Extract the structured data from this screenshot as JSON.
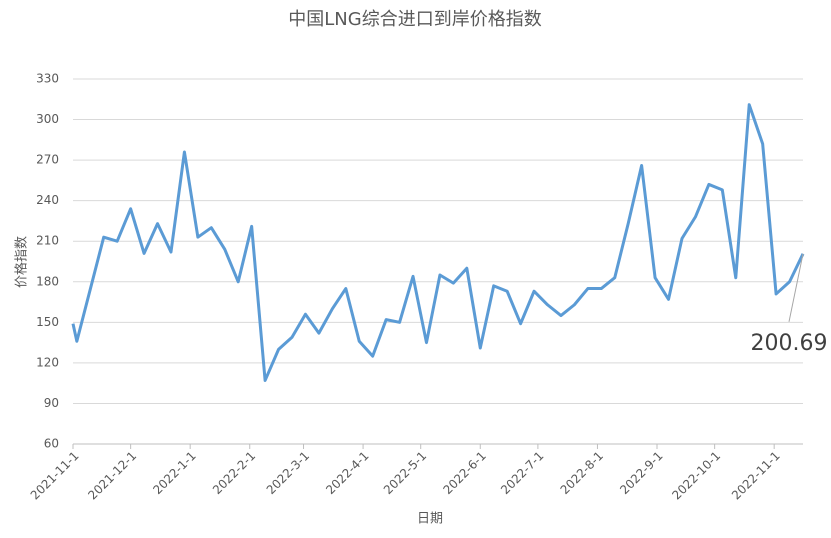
{
  "chart_data": {
    "type": "line",
    "title": "中国LNG综合进口到岸价格指数",
    "x_label": "日期",
    "y_label": "价格指数",
    "x": [
      "2021-11-1",
      "2021-11-3",
      "2021-11-17",
      "2021-11-24",
      "2021-12-1",
      "2021-12-8",
      "2021-12-15",
      "2021-12-22",
      "2021-12-29",
      "2022-1-5",
      "2022-1-12",
      "2022-1-19",
      "2022-1-26",
      "2022-2-2",
      "2022-2-9",
      "2022-2-16",
      "2022-2-23",
      "2022-3-2",
      "2022-3-9",
      "2022-3-16",
      "2022-3-23",
      "2022-3-30",
      "2022-4-6",
      "2022-4-13",
      "2022-4-20",
      "2022-4-27",
      "2022-5-4",
      "2022-5-11",
      "2022-5-18",
      "2022-5-25",
      "2022-6-1",
      "2022-6-8",
      "2022-6-15",
      "2022-6-22",
      "2022-6-29",
      "2022-7-6",
      "2022-7-13",
      "2022-7-20",
      "2022-7-27",
      "2022-8-3",
      "2022-8-10",
      "2022-8-17",
      "2022-8-24",
      "2022-8-31",
      "2022-9-7",
      "2022-9-14",
      "2022-9-21",
      "2022-9-28",
      "2022-10-5",
      "2022-10-12",
      "2022-10-19",
      "2022-10-26",
      "2022-11-2",
      "2022-11-9",
      "2022-11-16"
    ],
    "series": [
      {
        "color": "#5b9bd5",
        "values": [
          149,
          136,
          213,
          210,
          234,
          201,
          223,
          202,
          276,
          213,
          220,
          204,
          180,
          221,
          107,
          130,
          139,
          156,
          142,
          160,
          175,
          136,
          125,
          152,
          150,
          184,
          135,
          185,
          179,
          190,
          131,
          177,
          173,
          149,
          173,
          163,
          155,
          163,
          175,
          175,
          183,
          223,
          266,
          183,
          167,
          212,
          228,
          252,
          248,
          183,
          311,
          282,
          171,
          180,
          200.69
        ]
      }
    ],
    "xlim": [
      "2021-11-1",
      "2022-11-16"
    ],
    "xticks": [
      "2021-11-1",
      "2021-12-1",
      "2022-1-1",
      "2022-2-1",
      "2022-3-1",
      "2022-4-1",
      "2022-5-1",
      "2022-6-1",
      "2022-7-1",
      "2022-8-1",
      "2022-9-1",
      "2022-10-1",
      "2022-11-1"
    ],
    "ylim": [
      60,
      330
    ],
    "yticks": [
      60,
      90,
      120,
      150,
      180,
      210,
      240,
      270,
      300,
      330
    ],
    "grid": true,
    "annotations": [
      {
        "label": "200.69",
        "x": "2022-11-16",
        "value": 200.69
      }
    ]
  }
}
